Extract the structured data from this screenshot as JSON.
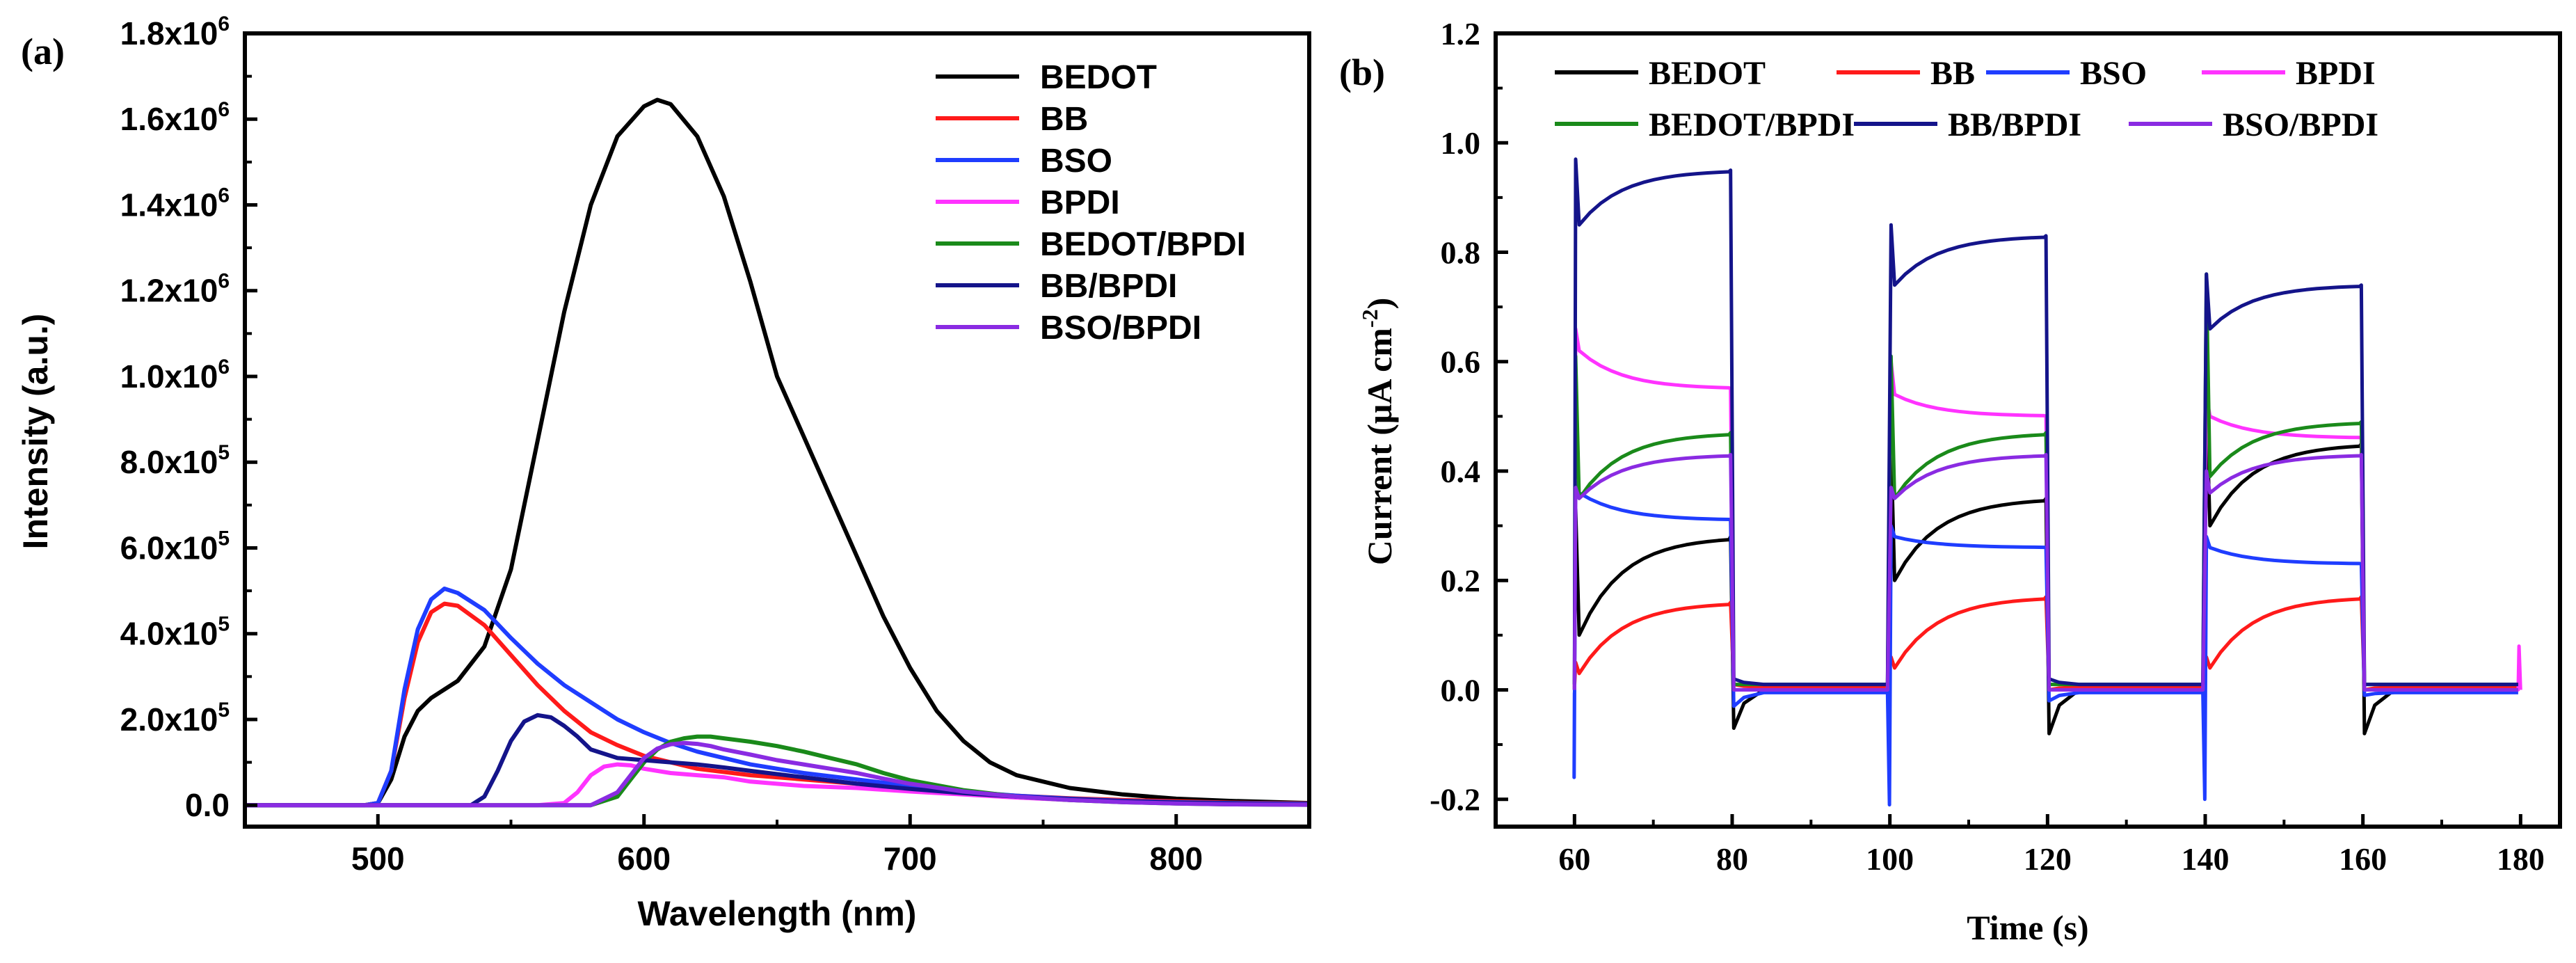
{
  "panel_labels": [
    "(a)",
    "(b)"
  ],
  "colors": {
    "BEDOT": "#000000",
    "BB": "#ff1a1a",
    "BSO": "#1f3dff",
    "BPDI": "#ff33ff",
    "BEDOT/BPDI": "#1a8a1a",
    "BB/BPDI": "#14148a",
    "BSO/BPDI": "#8a2be2"
  },
  "chart_data": [
    {
      "type": "line",
      "panel": "(a)",
      "title": "",
      "xlabel": "Wavelength (nm)",
      "ylabel": "Intensity (a.u.)",
      "xlim": [
        450,
        850
      ],
      "ylim": [
        -50000,
        1800000
      ],
      "xticks": [
        500,
        600,
        700,
        800
      ],
      "xtick_labels": [
        "500",
        "600",
        "700",
        "800"
      ],
      "yticks": [
        0,
        200000,
        400000,
        600000,
        800000,
        1000000,
        1200000,
        1400000,
        1600000,
        1800000
      ],
      "ytick_labels": [
        {
          "base": "0.0",
          "exp": ""
        },
        {
          "base": "2.0x10",
          "exp": "5"
        },
        {
          "base": "4.0x10",
          "exp": "5"
        },
        {
          "base": "6.0x10",
          "exp": "5"
        },
        {
          "base": "8.0x10",
          "exp": "5"
        },
        {
          "base": "1.0x10",
          "exp": "6"
        },
        {
          "base": "1.2x10",
          "exp": "6"
        },
        {
          "base": "1.4x10",
          "exp": "6"
        },
        {
          "base": "1.6x10",
          "exp": "6"
        },
        {
          "base": "1.8x10",
          "exp": "6"
        }
      ],
      "legend_position": "top-right",
      "series": [
        {
          "name": "BEDOT",
          "x": [
            450,
            495,
            500,
            505,
            510,
            515,
            520,
            525,
            530,
            540,
            550,
            560,
            570,
            580,
            590,
            600,
            605,
            610,
            620,
            630,
            640,
            650,
            660,
            670,
            680,
            690,
            700,
            710,
            720,
            730,
            740,
            760,
            780,
            800,
            820,
            850
          ],
          "y": [
            0,
            0,
            5000,
            60000,
            160000,
            220000,
            250000,
            270000,
            290000,
            370000,
            550000,
            850000,
            1150000,
            1400000,
            1560000,
            1630000,
            1645000,
            1635000,
            1560000,
            1420000,
            1220000,
            1000000,
            860000,
            720000,
            580000,
            440000,
            320000,
            220000,
            150000,
            100000,
            70000,
            40000,
            25000,
            15000,
            10000,
            5000
          ]
        },
        {
          "name": "BB",
          "x": [
            450,
            495,
            500,
            505,
            510,
            515,
            520,
            525,
            530,
            540,
            550,
            560,
            570,
            580,
            590,
            600,
            610,
            620,
            640,
            660,
            680,
            700,
            720,
            740,
            760,
            780,
            800,
            820,
            850
          ],
          "y": [
            0,
            0,
            5000,
            80000,
            250000,
            380000,
            450000,
            470000,
            465000,
            420000,
            350000,
            280000,
            220000,
            170000,
            140000,
            115000,
            100000,
            85000,
            70000,
            60000,
            50000,
            40000,
            30000,
            22000,
            16000,
            12000,
            9000,
            6000,
            4000
          ]
        },
        {
          "name": "BSO",
          "x": [
            450,
            495,
            500,
            505,
            510,
            515,
            520,
            525,
            530,
            540,
            550,
            560,
            570,
            580,
            590,
            600,
            610,
            620,
            640,
            660,
            680,
            700,
            720,
            740,
            760,
            780,
            800,
            820,
            850
          ],
          "y": [
            0,
            0,
            5000,
            80000,
            270000,
            410000,
            480000,
            505000,
            495000,
            455000,
            390000,
            330000,
            280000,
            240000,
            200000,
            170000,
            145000,
            125000,
            95000,
            75000,
            60000,
            45000,
            32000,
            22000,
            15000,
            10000,
            7000,
            5000,
            3000
          ]
        },
        {
          "name": "BPDI",
          "x": [
            450,
            560,
            570,
            575,
            580,
            585,
            590,
            595,
            600,
            610,
            620,
            630,
            640,
            660,
            680,
            700,
            720,
            740,
            760,
            780,
            800,
            820,
            850
          ],
          "y": [
            0,
            0,
            5000,
            30000,
            70000,
            90000,
            95000,
            93000,
            85000,
            75000,
            70000,
            65000,
            55000,
            45000,
            40000,
            32000,
            25000,
            18000,
            12000,
            8000,
            5000,
            3000,
            2000
          ]
        },
        {
          "name": "BEDOT/BPDI",
          "x": [
            450,
            580,
            590,
            595,
            600,
            605,
            610,
            615,
            620,
            625,
            630,
            640,
            650,
            660,
            670,
            680,
            690,
            700,
            720,
            740,
            760,
            780,
            800,
            820,
            850
          ],
          "y": [
            0,
            0,
            20000,
            60000,
            100000,
            130000,
            148000,
            156000,
            160000,
            160000,
            156000,
            148000,
            138000,
            125000,
            110000,
            95000,
            75000,
            58000,
            35000,
            20000,
            12000,
            7000,
            4000,
            2000,
            1000
          ]
        },
        {
          "name": "BB/BPDI",
          "x": [
            450,
            535,
            540,
            545,
            550,
            555,
            560,
            565,
            570,
            575,
            580,
            590,
            600,
            610,
            620,
            630,
            640,
            660,
            680,
            700,
            720,
            740,
            760,
            780,
            800,
            820,
            850
          ],
          "y": [
            0,
            0,
            20000,
            80000,
            150000,
            195000,
            210000,
            205000,
            185000,
            160000,
            130000,
            110000,
            105000,
            100000,
            95000,
            88000,
            80000,
            65000,
            50000,
            38000,
            28000,
            20000,
            14000,
            9000,
            6000,
            4000,
            2000
          ]
        },
        {
          "name": "BSO/BPDI",
          "x": [
            450,
            580,
            590,
            595,
            600,
            605,
            610,
            615,
            620,
            625,
            630,
            640,
            650,
            660,
            670,
            680,
            690,
            700,
            720,
            740,
            760,
            780,
            800,
            820,
            850
          ],
          "y": [
            0,
            0,
            30000,
            70000,
            110000,
            132000,
            142000,
            145000,
            143000,
            138000,
            130000,
            118000,
            105000,
            95000,
            85000,
            75000,
            62000,
            50000,
            32000,
            20000,
            12000,
            7000,
            4000,
            2000,
            1000
          ]
        }
      ]
    },
    {
      "type": "line",
      "panel": "(b)",
      "title": "",
      "xlabel": "Time (s)",
      "ylabel": {
        "base": "Current (μA cm",
        "exp": "-2",
        "close": ")"
      },
      "xlim": [
        50,
        185
      ],
      "ylim": [
        -0.25,
        1.2
      ],
      "xticks": [
        60,
        80,
        100,
        120,
        140,
        160,
        180
      ],
      "xtick_labels": [
        "60",
        "80",
        "100",
        "120",
        "140",
        "160",
        "180"
      ],
      "yticks": [
        -0.2,
        0.0,
        0.2,
        0.4,
        0.6,
        0.8,
        1.0,
        1.2
      ],
      "ytick_labels": [
        "-0.2",
        "0.0",
        "0.2",
        "0.4",
        "0.6",
        "0.8",
        "1.0",
        "1.2"
      ],
      "legend_position": "top",
      "light_on_intervals": [
        [
          60,
          80
        ],
        [
          100,
          120
        ],
        [
          140,
          160
        ]
      ],
      "series": [
        {
          "name": "BEDOT",
          "on_start": [
            0.1,
            0.2,
            0.3
          ],
          "on_end": [
            0.28,
            0.35,
            0.45
          ],
          "spike_on": [
            0.33,
            0.45,
            0.52
          ],
          "spike_off": [
            -0.07,
            -0.08,
            -0.08
          ],
          "baseline": 0.0
        },
        {
          "name": "BB",
          "on_start": [
            0.03,
            0.04,
            0.04
          ],
          "on_end": [
            0.16,
            0.17,
            0.17
          ],
          "spike_on": [
            0.05,
            0.06,
            0.06
          ],
          "spike_off": [
            0.01,
            0.0,
            0.0
          ],
          "baseline": 0.005
        },
        {
          "name": "BSO",
          "on_start": [
            0.36,
            0.28,
            0.26
          ],
          "on_end": [
            0.31,
            0.26,
            0.23
          ],
          "spike_on": [
            0.38,
            0.3,
            0.28
          ],
          "spike_off": [
            -0.03,
            -0.02,
            -0.01
          ],
          "baseline": -0.005,
          "neg_spike": [
            -0.16,
            -0.21,
            -0.2
          ]
        },
        {
          "name": "BPDI",
          "on_start": [
            0.62,
            0.54,
            0.5
          ],
          "on_end": [
            0.55,
            0.5,
            0.46
          ],
          "spike_on": [
            0.66,
            0.6,
            0.54
          ],
          "spike_off": [
            0.0,
            0.0,
            0.0
          ],
          "baseline": 0.0,
          "end_spike": 0.08
        },
        {
          "name": "BEDOT/BPDI",
          "on_start": [
            0.35,
            0.35,
            0.39
          ],
          "on_end": [
            0.47,
            0.47,
            0.49
          ],
          "spike_on": [
            0.61,
            0.61,
            0.76
          ],
          "spike_off": [
            0.01,
            0.01,
            0.01
          ],
          "baseline": 0.01
        },
        {
          "name": "BB/BPDI",
          "on_start": [
            0.85,
            0.74,
            0.66
          ],
          "on_end": [
            0.95,
            0.83,
            0.74
          ],
          "spike_on": [
            0.97,
            0.85,
            0.76
          ],
          "spike_off": [
            0.02,
            0.02,
            0.01
          ],
          "baseline": 0.01
        },
        {
          "name": "BSO/BPDI",
          "on_start": [
            0.35,
            0.35,
            0.36
          ],
          "on_end": [
            0.43,
            0.43,
            0.43
          ],
          "spike_on": [
            0.37,
            0.37,
            0.4
          ],
          "spike_off": [
            0.0,
            0.0,
            0.0
          ],
          "baseline": 0.0
        }
      ]
    }
  ]
}
